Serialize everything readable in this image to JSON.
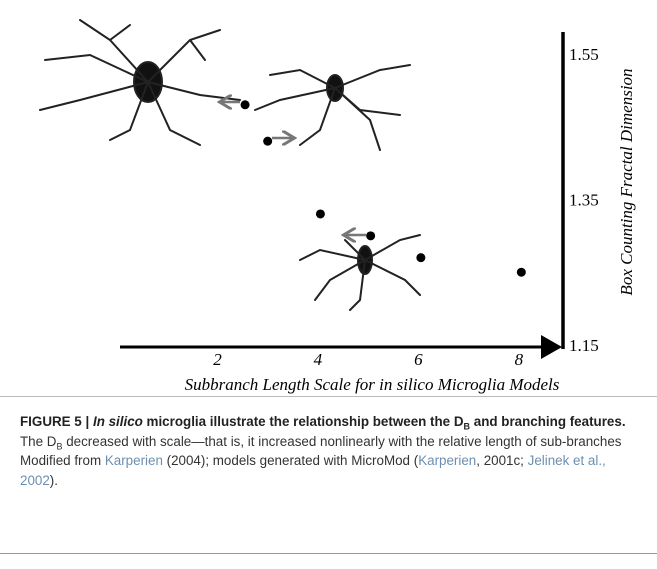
{
  "chart_data": {
    "type": "scatter",
    "x_label": "Subbranch Length Scale for in silico Microglia Models",
    "y_label": "Box Counting Fractal Dimension",
    "x": [
      2.55,
      3.0,
      4.05,
      5.05,
      6.05,
      8.05
    ],
    "values": [
      1.48,
      1.43,
      1.33,
      1.3,
      1.27,
      1.25
    ],
    "color": "#000000",
    "xlim": [
      0,
      8.8
    ],
    "ylim": [
      1.15,
      1.58
    ],
    "xticks": [
      2,
      4,
      6,
      8
    ],
    "yticks": [
      1.55,
      1.35,
      1.15
    ],
    "grid": false
  },
  "caption": {
    "label": "FIGURE 5 |",
    "title": [
      "In silico",
      " microglia illustrate the relationship between the D",
      "B",
      " and branching features."
    ],
    "body": [
      " The D",
      "B",
      " decreased with scale—that is, it increased nonlinearly with the relative length of sub-branches Modified from ",
      "Karperien",
      " (2004); models generated with MicroMod (",
      "Karperien",
      ", 2001c; ",
      "Jelinek et al., 2002",
      ")."
    ]
  }
}
